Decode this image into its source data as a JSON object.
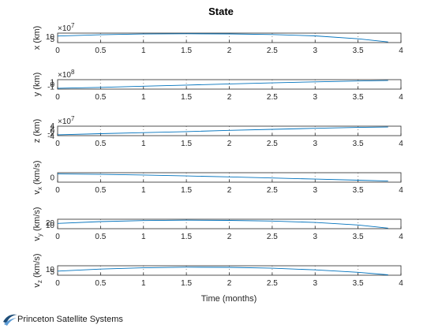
{
  "chart_data": {
    "type": "line",
    "title": "State",
    "xlabel": "Time (months)",
    "xlim": [
      0,
      4
    ],
    "xticks": [
      "0",
      "0.5",
      "1",
      "1.5",
      "2",
      "2.5",
      "3",
      "3.5",
      "4"
    ],
    "grid": true,
    "color": "#0072BD",
    "subplots": [
      {
        "ylabel": "x (km)",
        "exponent": "7",
        "ytick_labels": [
          "10",
          "5"
        ],
        "ylim": [
          4,
          11.5
        ],
        "series": [
          {
            "x": [
              0,
              0.5,
              1,
              1.5,
              2,
              2.5,
              3,
              3.5,
              3.85
            ],
            "y": [
              9.2,
              10.2,
              10.8,
              11.0,
              10.9,
              10.4,
              9.3,
              7.0,
              4.5
            ]
          }
        ]
      },
      {
        "ylabel": "y (km)",
        "exponent": "8",
        "ytick_labels": [
          "1",
          "0",
          "-1"
        ],
        "ylim": [
          -1.6,
          1.6
        ],
        "series": [
          {
            "x": [
              0,
              0.5,
              1,
              1.5,
              2,
              2.5,
              3,
              3.5,
              3.85
            ],
            "y": [
              -1.3,
              -1.0,
              -0.6,
              -0.25,
              0.15,
              0.5,
              0.85,
              1.15,
              1.3
            ]
          }
        ]
      },
      {
        "ylabel": "z (km)",
        "exponent": "7",
        "ytick_labels": [
          "4",
          "2",
          "0",
          "-2",
          "-4"
        ],
        "ylim": [
          -5.5,
          5.5
        ],
        "series": [
          {
            "x": [
              0,
              0.5,
              1,
              1.5,
              2,
              2.5,
              3,
              3.5,
              3.85
            ],
            "y": [
              -4.5,
              -3.2,
              -2.0,
              -0.8,
              0.6,
              1.8,
              3.0,
              4.0,
              4.5
            ]
          }
        ]
      },
      {
        "ylabel": "v_x (km/s)",
        "exponent": "",
        "ytick_labels": [
          "0"
        ],
        "ylim": [
          -14,
          8
        ],
        "series": [
          {
            "x": [
              0,
              0.5,
              1,
              1.5,
              2,
              2.5,
              3,
              3.5,
              3.85
            ],
            "y": [
              5,
              4.2,
              2.6,
              0.5,
              -1.8,
              -4.3,
              -6.8,
              -9.5,
              -11.5
            ]
          }
        ]
      },
      {
        "ylabel": "v_y (km/s)",
        "exponent": "",
        "ytick_labels": [
          "20",
          "10"
        ],
        "ylim": [
          8,
          26
        ],
        "series": [
          {
            "x": [
              0,
              0.5,
              1,
              1.5,
              2,
              2.5,
              3,
              3.5,
              3.85
            ],
            "y": [
              18,
              21.5,
              23.5,
              24.2,
              23.8,
              22.5,
              19.8,
              15.0,
              9.0
            ]
          }
        ]
      },
      {
        "ylabel": "v_z (km/s)",
        "exponent": "",
        "ytick_labels": [
          "10",
          "5"
        ],
        "ylim": [
          3,
          14.5
        ],
        "series": [
          {
            "x": [
              0,
              0.5,
              1,
              1.5,
              2,
              2.5,
              3,
              3.5,
              3.85
            ],
            "y": [
              8.0,
              10.5,
              12.0,
              12.8,
              12.6,
              11.5,
              9.5,
              6.5,
              3.5
            ]
          }
        ]
      }
    ]
  },
  "footer": {
    "text": "Princeton Satellite Systems"
  }
}
